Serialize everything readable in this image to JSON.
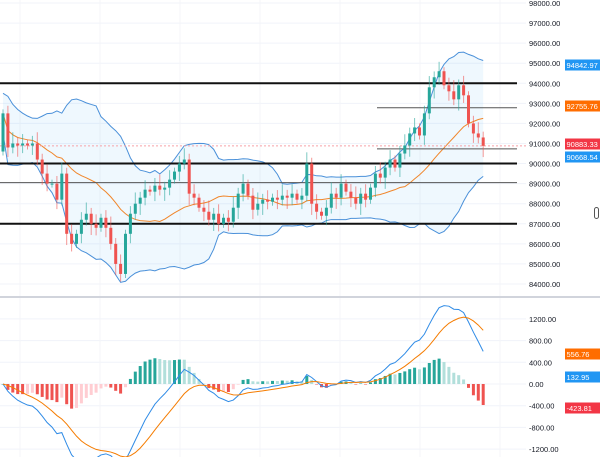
{
  "chart_data": {
    "type": "candlestick",
    "price_axis": {
      "ticks": [
        "98000.00",
        "97000.00",
        "96000.00",
        "95000.00",
        "94000.00",
        "93000.00",
        "92000.00",
        "91000.00",
        "90000.00",
        "89000.00",
        "88000.00",
        "87000.00",
        "86000.00",
        "85000.00",
        "84000.00"
      ],
      "ylim": [
        84000,
        98000
      ]
    },
    "macd_axis": {
      "ticks": [
        "1200.00",
        "800.00",
        "400.00",
        "0.00",
        "-400.00",
        "-800.00",
        "-1200.00"
      ],
      "ylim": [
        -1200,
        1200
      ]
    },
    "closes": [
      92500,
      90800,
      91000,
      90900,
      91000,
      90900,
      91000,
      90200,
      89500,
      89000,
      89000,
      88200,
      89500,
      86500,
      86000,
      86500,
      87200,
      87500,
      87000,
      86800,
      87300,
      86800,
      86000,
      85000,
      84500,
      86500,
      87500,
      88000,
      88300,
      88700,
      88600,
      88900,
      88700,
      88800,
      89200,
      89600,
      90000,
      90200,
      88500,
      88300,
      87800,
      87600,
      87200,
      87500,
      87000,
      87300,
      87100,
      87800,
      88500,
      89000,
      88400,
      87700,
      88000,
      88200,
      88100,
      88300,
      88200,
      88400,
      88300,
      88500,
      88200,
      88400,
      90000,
      88000,
      87600,
      87400,
      87800,
      88500,
      88300,
      89000,
      88600,
      88300,
      88000,
      88500,
      88200,
      88800,
      89500,
      89300,
      89800,
      90200,
      89800,
      90500,
      90900,
      91500,
      91800,
      91400,
      92500,
      93800,
      94300,
      94600,
      93900,
      93600,
      93200,
      93900,
      93400,
      92000,
      91500,
      91300,
      90883
    ],
    "first_open": 90600,
    "horizontal_levels": [
      {
        "price": 94000,
        "style": "thick",
        "extent": "full"
      },
      {
        "price": 92780,
        "style": "thin",
        "extent": "partial"
      },
      {
        "price": 90730,
        "style": "thin",
        "extent": "partial"
      },
      {
        "price": 90000,
        "style": "thick",
        "extent": "full"
      },
      {
        "price": 89050,
        "style": "thin",
        "extent": "full"
      },
      {
        "price": 87000,
        "style": "thick",
        "extent": "full"
      }
    ],
    "indicators": {
      "bollinger": {
        "upper": "94842.97",
        "basis": "92755.76",
        "lower": "90668.54"
      },
      "last_price": "90883.33",
      "macd": {
        "signal": "556.76",
        "macd": "132.95",
        "histogram": "-423.81"
      }
    },
    "colors": {
      "up": "#26a69a",
      "down": "#ef5350",
      "band": "#4a90d9",
      "basis": "#f0862b",
      "last": "#f23645",
      "macd": "#2f8be6",
      "signal": "#f57c00"
    }
  }
}
